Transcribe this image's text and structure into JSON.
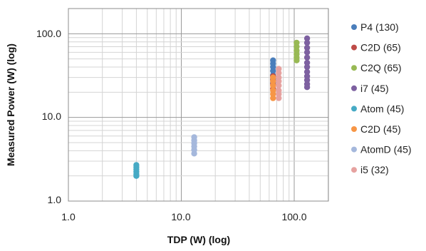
{
  "chart_data": {
    "type": "scatter",
    "xlabel": "TDP (W) (log)",
    "ylabel": "Measured Power (W) (log)",
    "x_scale": "log",
    "y_scale": "log",
    "xlim": [
      1,
      200
    ],
    "ylim": [
      1,
      200
    ],
    "x_ticks": [
      "1.0",
      "10.0",
      "100.0"
    ],
    "y_ticks": [
      "1.0",
      "10.0",
      "100.0"
    ],
    "grid": true,
    "legend_position": "right",
    "series": [
      {
        "name": "P4 (130)",
        "color": "#4a7ebb",
        "points": [
          {
            "x": 65,
            "y": 48
          },
          {
            "x": 65,
            "y": 44
          },
          {
            "x": 65,
            "y": 40
          },
          {
            "x": 65,
            "y": 36
          },
          {
            "x": 65,
            "y": 32
          },
          {
            "x": 65,
            "y": 29
          },
          {
            "x": 65,
            "y": 26
          }
        ]
      },
      {
        "name": "C2D (65)",
        "color": "#be4b48",
        "points": [
          {
            "x": 65,
            "y": 31
          },
          {
            "x": 65,
            "y": 28
          },
          {
            "x": 65,
            "y": 25
          },
          {
            "x": 65,
            "y": 22
          }
        ]
      },
      {
        "name": "C2Q (65)",
        "color": "#98b954",
        "points": [
          {
            "x": 105,
            "y": 78
          },
          {
            "x": 105,
            "y": 70
          },
          {
            "x": 105,
            "y": 63
          },
          {
            "x": 105,
            "y": 57
          },
          {
            "x": 105,
            "y": 52
          },
          {
            "x": 105,
            "y": 48
          }
        ]
      },
      {
        "name": "i7 (45)",
        "color": "#7d60a0",
        "points": [
          {
            "x": 130,
            "y": 88
          },
          {
            "x": 130,
            "y": 78
          },
          {
            "x": 130,
            "y": 68
          },
          {
            "x": 130,
            "y": 60
          },
          {
            "x": 130,
            "y": 52
          },
          {
            "x": 130,
            "y": 45
          },
          {
            "x": 130,
            "y": 40
          },
          {
            "x": 130,
            "y": 35
          },
          {
            "x": 130,
            "y": 31
          },
          {
            "x": 130,
            "y": 28
          },
          {
            "x": 130,
            "y": 25
          },
          {
            "x": 130,
            "y": 23
          }
        ]
      },
      {
        "name": "Atom (45)",
        "color": "#46aac5",
        "points": [
          {
            "x": 4,
            "y": 2.7
          },
          {
            "x": 4,
            "y": 2.55
          },
          {
            "x": 4,
            "y": 2.4
          },
          {
            "x": 4,
            "y": 2.25
          },
          {
            "x": 4,
            "y": 2.1
          },
          {
            "x": 4,
            "y": 2.0
          }
        ]
      },
      {
        "name": "C2D (45)",
        "color": "#f79646",
        "points": [
          {
            "x": 65,
            "y": 30
          },
          {
            "x": 65,
            "y": 27
          },
          {
            "x": 65,
            "y": 24
          },
          {
            "x": 65,
            "y": 21
          },
          {
            "x": 65,
            "y": 19
          },
          {
            "x": 65,
            "y": 17
          }
        ]
      },
      {
        "name": "AtomD (45)",
        "color": "#a5b8dc",
        "points": [
          {
            "x": 13,
            "y": 5.8
          },
          {
            "x": 13,
            "y": 5.3
          },
          {
            "x": 13,
            "y": 4.9
          },
          {
            "x": 13,
            "y": 4.5
          },
          {
            "x": 13,
            "y": 4.1
          },
          {
            "x": 13,
            "y": 3.7
          }
        ]
      },
      {
        "name": "i5 (32)",
        "color": "#e6a2a0",
        "points": [
          {
            "x": 73,
            "y": 38
          },
          {
            "x": 73,
            "y": 34
          },
          {
            "x": 73,
            "y": 30
          },
          {
            "x": 73,
            "y": 27
          },
          {
            "x": 73,
            "y": 24
          },
          {
            "x": 73,
            "y": 21
          },
          {
            "x": 73,
            "y": 19
          },
          {
            "x": 73,
            "y": 17
          }
        ]
      }
    ]
  }
}
